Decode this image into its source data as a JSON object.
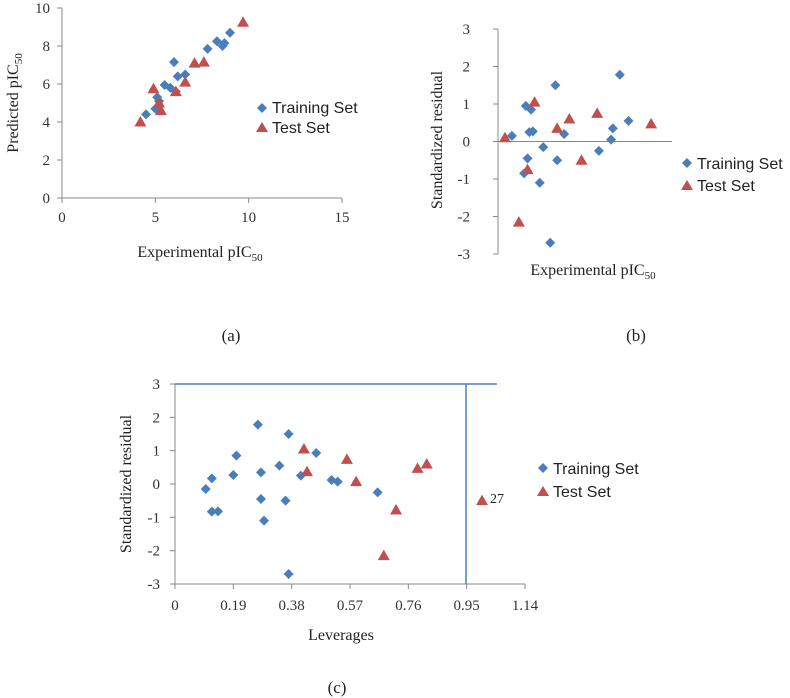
{
  "colors": {
    "training": "#4a7ebb",
    "test": "#c0504d",
    "axis": "#888888",
    "refline": "#4a7ebb"
  },
  "captions": {
    "a": "(a)",
    "b": "(b)",
    "c": "(c)"
  },
  "chart_data": [
    {
      "id": "a",
      "type": "scatter",
      "ylabel_main": "Predicted pIC",
      "ylabel_sub": "50",
      "xlabel_main": "Experimental pIC",
      "xlabel_sub": "50",
      "xlim": [
        0,
        15
      ],
      "ylim": [
        0,
        10
      ],
      "xticks": [
        0,
        5,
        10,
        15
      ],
      "yticks": [
        0,
        2,
        4,
        6,
        8,
        10
      ],
      "legend_position": "right",
      "series": [
        {
          "name": "Training Set",
          "marker": "diamond",
          "points": [
            [
              4.5,
              4.4
            ],
            [
              5.0,
              4.7
            ],
            [
              5.1,
              5.3
            ],
            [
              5.2,
              5.1
            ],
            [
              5.5,
              5.95
            ],
            [
              5.8,
              5.8
            ],
            [
              6.0,
              7.15
            ],
            [
              6.2,
              6.4
            ],
            [
              6.1,
              5.6
            ],
            [
              6.6,
              6.5
            ],
            [
              7.8,
              7.85
            ],
            [
              8.3,
              8.25
            ],
            [
              8.6,
              8.0
            ],
            [
              8.7,
              8.15
            ],
            [
              9.0,
              8.7
            ]
          ]
        },
        {
          "name": "Test Set",
          "marker": "triangle",
          "points": [
            [
              4.2,
              4.0
            ],
            [
              4.9,
              5.75
            ],
            [
              5.2,
              5.0
            ],
            [
              5.3,
              4.6
            ],
            [
              6.1,
              5.6
            ],
            [
              6.6,
              6.1
            ],
            [
              7.1,
              7.1
            ],
            [
              7.6,
              7.15
            ],
            [
              9.7,
              9.25
            ]
          ]
        }
      ]
    },
    {
      "id": "b",
      "type": "scatter",
      "ylabel_main": "Standardized residual",
      "xlabel_main": "Experimental pIC",
      "xlabel_sub": "50",
      "ylim": [
        -3,
        3
      ],
      "yticks": [
        -3,
        -2,
        -1,
        0,
        1,
        2,
        3
      ],
      "x_tick_labels_shown": false,
      "legend_position": "right",
      "series": [
        {
          "name": "Training Set",
          "marker": "diamond",
          "points": [
            [
              4.4,
              0.15
            ],
            [
              4.8,
              0.95
            ],
            [
              4.85,
              -0.45
            ],
            [
              4.9,
              0.25
            ],
            [
              4.95,
              0.85
            ],
            [
              5.0,
              0.27
            ],
            [
              4.75,
              -0.85
            ],
            [
              5.2,
              -1.1
            ],
            [
              5.3,
              -0.15
            ],
            [
              5.5,
              -2.7
            ],
            [
              5.65,
              1.5
            ],
            [
              5.7,
              -0.5
            ],
            [
              5.9,
              0.2
            ],
            [
              6.9,
              -0.25
            ],
            [
              7.25,
              0.05
            ],
            [
              7.3,
              0.35
            ],
            [
              7.5,
              1.78
            ],
            [
              7.75,
              0.55
            ]
          ]
        },
        {
          "name": "Test Set",
          "marker": "triangle",
          "points": [
            [
              4.2,
              0.1
            ],
            [
              4.6,
              -2.15
            ],
            [
              4.85,
              -0.75
            ],
            [
              5.05,
              1.05
            ],
            [
              5.7,
              0.35
            ],
            [
              6.05,
              0.6
            ],
            [
              6.4,
              -0.5
            ],
            [
              6.85,
              0.75
            ],
            [
              8.4,
              0.47
            ]
          ]
        }
      ]
    },
    {
      "id": "c",
      "type": "scatter",
      "ylabel_main": "Standardized residual",
      "xlabel_main": "Leverages",
      "xlim": [
        0,
        1.14
      ],
      "ylim": [
        -3,
        3
      ],
      "xticks": [
        "0",
        "0.19",
        "0.38",
        "0.57",
        "0.76",
        "0.95",
        "1.14"
      ],
      "yticks": [
        -3,
        -2,
        -1,
        0,
        1,
        2,
        3
      ],
      "legend_position": "right",
      "reference_lines": {
        "h": 3,
        "v": 0.95
      },
      "annotation": "27",
      "series": [
        {
          "name": "Training Set",
          "marker": "diamond",
          "points": [
            [
              0.1,
              -0.15
            ],
            [
              0.12,
              0.17
            ],
            [
              0.12,
              -0.83
            ],
            [
              0.14,
              -0.82
            ],
            [
              0.19,
              0.27
            ],
            [
              0.2,
              0.85
            ],
            [
              0.27,
              1.78
            ],
            [
              0.28,
              0.35
            ],
            [
              0.28,
              -0.45
            ],
            [
              0.29,
              -1.1
            ],
            [
              0.34,
              0.55
            ],
            [
              0.36,
              -0.5
            ],
            [
              0.37,
              1.5
            ],
            [
              0.37,
              -2.7
            ],
            [
              0.41,
              0.25
            ],
            [
              0.46,
              0.93
            ],
            [
              0.51,
              0.12
            ],
            [
              0.53,
              0.07
            ],
            [
              0.66,
              -0.25
            ]
          ]
        },
        {
          "name": "Test Set",
          "marker": "triangle",
          "points": [
            [
              0.42,
              1.05
            ],
            [
              0.43,
              0.37
            ],
            [
              0.56,
              0.74
            ],
            [
              0.59,
              0.07
            ],
            [
              0.68,
              -2.15
            ],
            [
              0.72,
              -0.78
            ],
            [
              0.79,
              0.47
            ],
            [
              0.82,
              0.6
            ],
            [
              1.0,
              -0.5
            ]
          ]
        }
      ]
    }
  ]
}
